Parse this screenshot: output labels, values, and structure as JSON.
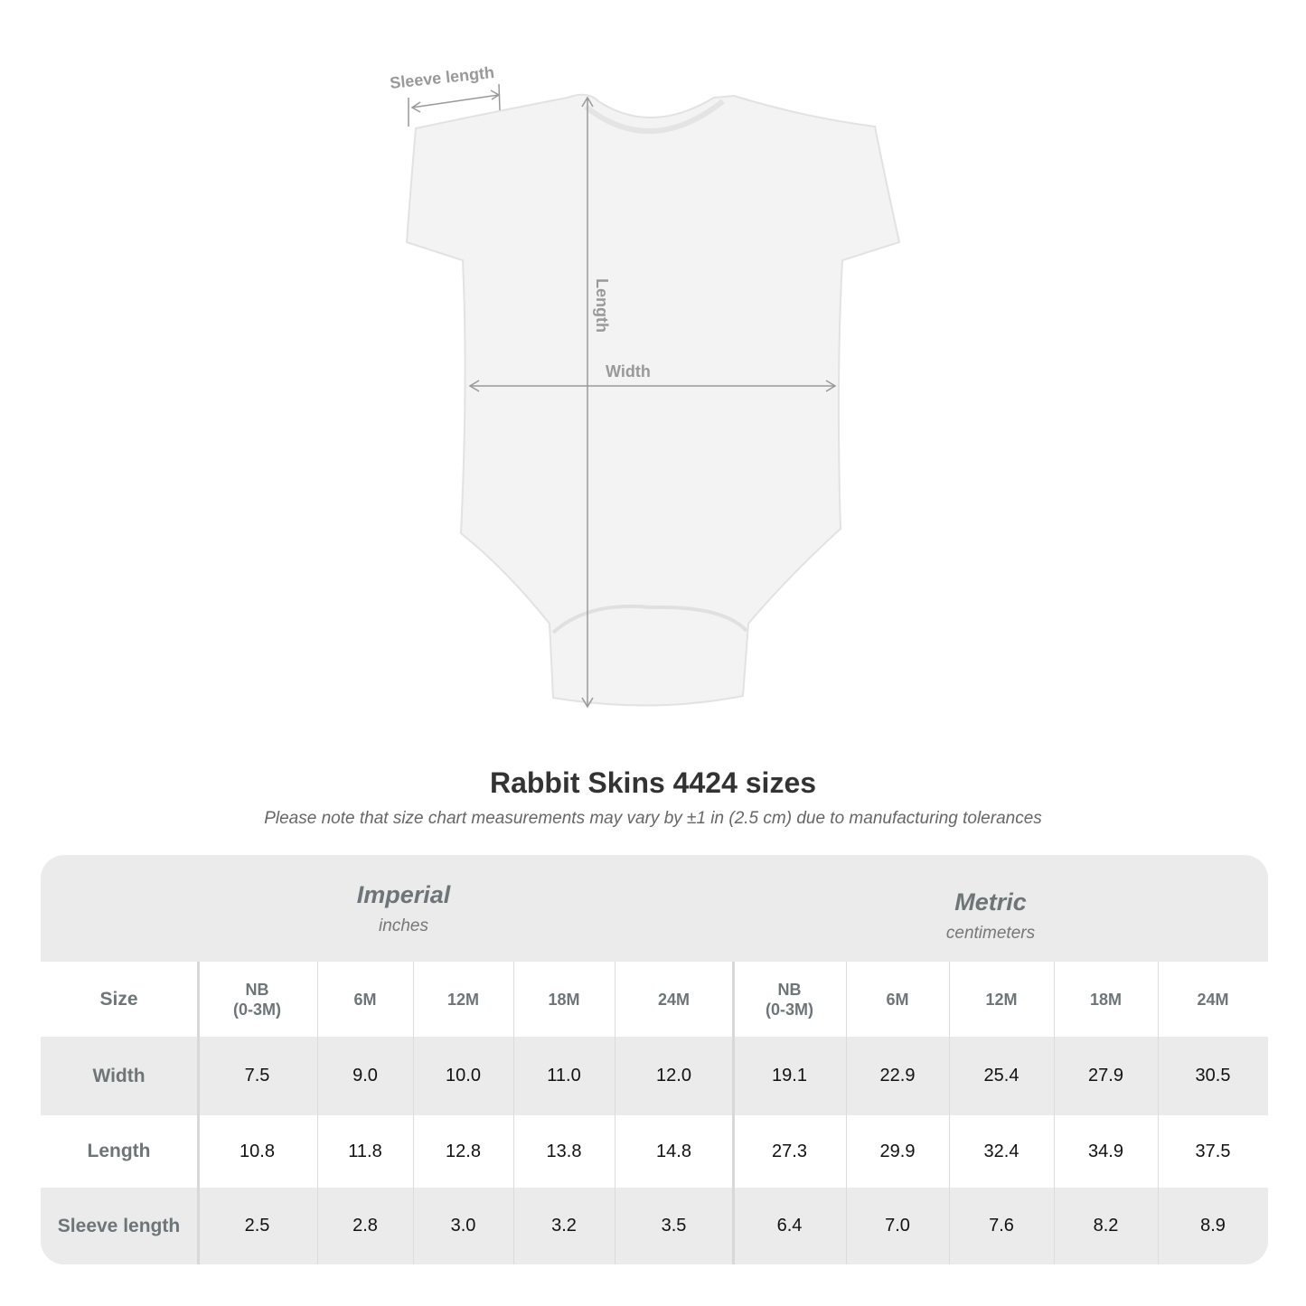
{
  "diagram": {
    "labels": {
      "sleeve": "Sleeve length",
      "length": "Length",
      "width": "Width"
    },
    "arrow_color": "#999999"
  },
  "header": {
    "title": "Rabbit Skins 4424 sizes",
    "note": "Please note that size chart measurements may vary by ±1 in (2.5 cm) due to manufacturing tolerances"
  },
  "table": {
    "imperial": {
      "name": "Imperial",
      "unit": "inches"
    },
    "metric": {
      "name": "Metric",
      "unit": "centimeters"
    },
    "size_label": "Size",
    "sizes": [
      [
        "NB",
        "(0-3M)"
      ],
      [
        "6M"
      ],
      [
        "12M"
      ],
      [
        "18M"
      ],
      [
        "24M"
      ]
    ],
    "rows": [
      {
        "label": "Width",
        "imperial": [
          "7.5",
          "9.0",
          "10.0",
          "11.0",
          "12.0"
        ],
        "metric": [
          "19.1",
          "22.9",
          "25.4",
          "27.9",
          "30.5"
        ]
      },
      {
        "label": "Length",
        "imperial": [
          "10.8",
          "11.8",
          "12.8",
          "13.8",
          "14.8"
        ],
        "metric": [
          "27.3",
          "29.9",
          "32.4",
          "34.9",
          "37.5"
        ]
      },
      {
        "label": "Sleeve length",
        "imperial": [
          "2.5",
          "2.8",
          "3.0",
          "3.2",
          "3.5"
        ],
        "metric": [
          "6.4",
          "7.0",
          "7.6",
          "8.2",
          "8.9"
        ]
      }
    ],
    "colors": {
      "band": "#ebebeb",
      "white": "#ffffff",
      "label_text": "#6e7577"
    }
  }
}
